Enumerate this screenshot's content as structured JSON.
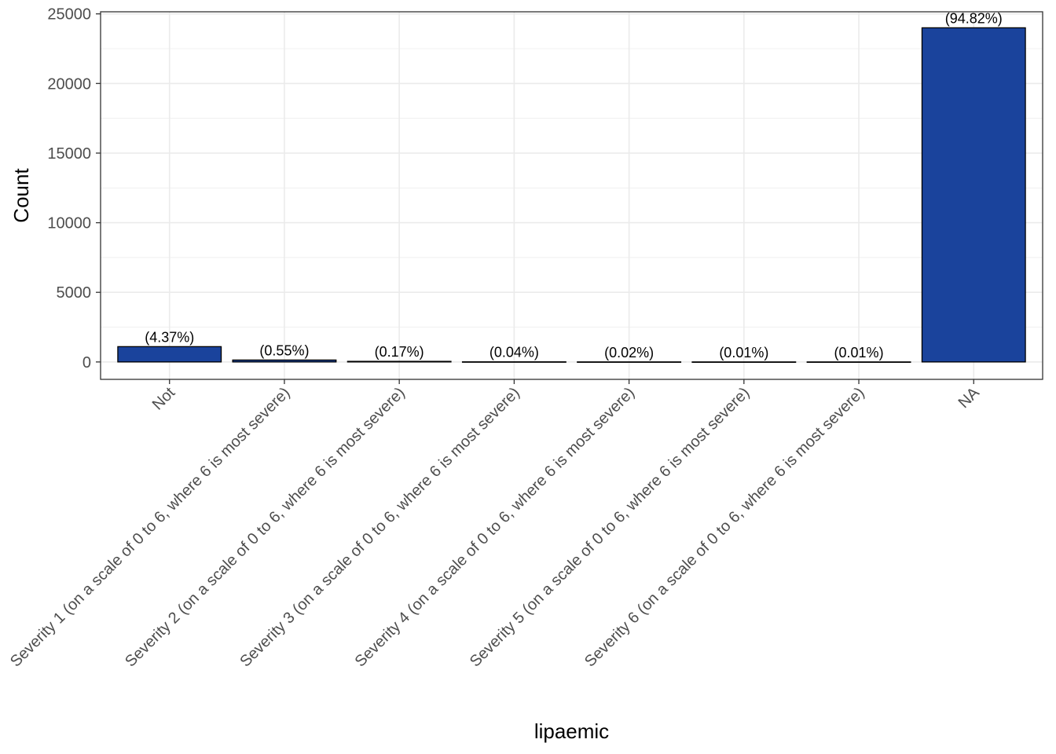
{
  "chart_data": {
    "type": "bar",
    "xlabel": "lipaemic",
    "ylabel": "Count",
    "categories": [
      "Not",
      "Severity 1 (on a scale of 0 to 6, where 6 is most severe)",
      "Severity 2 (on a scale of 0 to 6, where 6 is most severe)",
      "Severity 3 (on a scale of 0 to 6, where 6 is most severe)",
      "Severity 4 (on a scale of 0 to 6, where 6 is most severe)",
      "Severity 5 (on a scale of 0 to 6, where 6 is most severe)",
      "Severity 6 (on a scale of 0 to 6, where 6 is most severe)",
      "NA"
    ],
    "values": [
      1100,
      139,
      43,
      10,
      5,
      3,
      3,
      24000
    ],
    "labels": [
      "(4.37%)",
      "(0.55%)",
      "(0.17%)",
      "(0.04%)",
      "(0.02%)",
      "(0.01%)",
      "(0.01%)",
      "(94.82%)"
    ],
    "ylim": [
      -1250,
      25150
    ],
    "yticks": [
      0,
      5000,
      10000,
      15000,
      20000,
      25000
    ],
    "grid": true,
    "bar_color": "#1a439c",
    "bar_outline": "#000000",
    "grid_color": "#ebebeb"
  }
}
